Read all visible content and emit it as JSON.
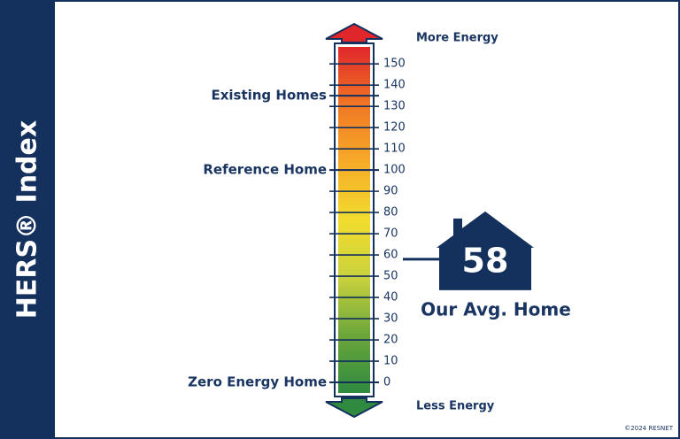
{
  "chart_data": {
    "type": "scale",
    "title": "HERS® Index",
    "top_label": "More Energy",
    "bottom_label": "Less Energy",
    "ylim": [
      -5,
      158
    ],
    "yticks": [
      0,
      10,
      20,
      30,
      40,
      50,
      60,
      70,
      80,
      90,
      100,
      110,
      120,
      130,
      140,
      150
    ],
    "gradient": [
      "#2f8a3f",
      "#6ba63b",
      "#c9d23c",
      "#f2dc2e",
      "#f6ab28",
      "#f07724",
      "#e0262a"
    ],
    "annotations": [
      {
        "label": "Existing Homes",
        "value": 135
      },
      {
        "label": "Reference Home",
        "value": 100
      },
      {
        "label": "Zero Energy Home",
        "value": 0
      }
    ],
    "marker": {
      "label": "Our Avg. Home",
      "value": 58,
      "color": "#14305c"
    },
    "credit": "©2024 RESNET"
  }
}
